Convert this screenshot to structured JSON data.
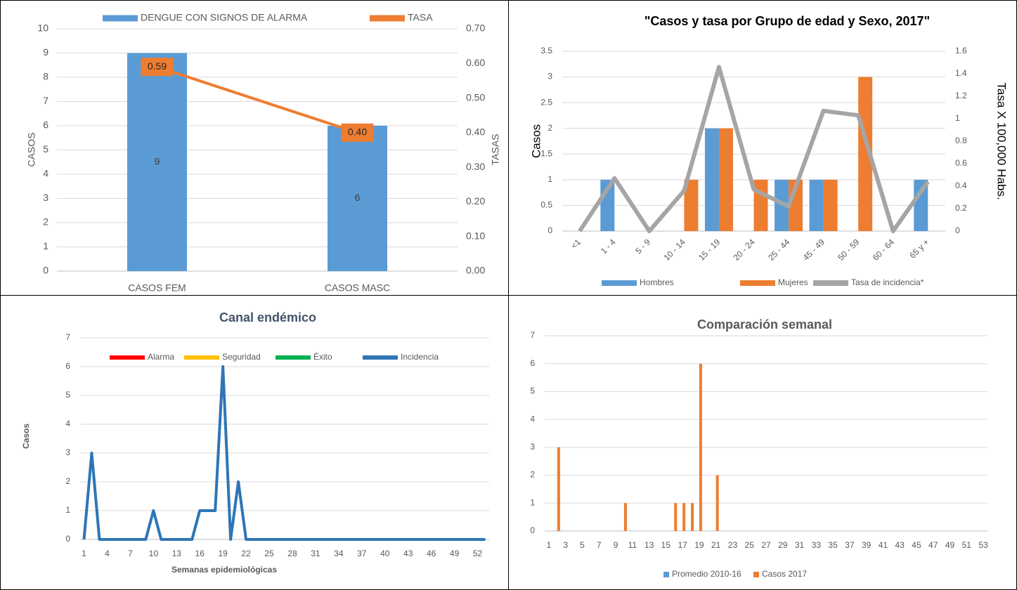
{
  "chart_data": [
    {
      "type": "combo",
      "categories": [
        "CASOS FEM",
        "CASOS MASC"
      ],
      "series": [
        {
          "name": "DENGUE CON SIGNOS DE ALARMA",
          "type": "bar",
          "color": "#5b9bd5",
          "values": [
            9,
            6
          ]
        },
        {
          "name": "TASA",
          "type": "line",
          "axis": "y2",
          "color": "#ed7d31",
          "values": [
            0.59,
            0.4
          ],
          "value_labels": [
            "0.59",
            "0.40"
          ]
        }
      ],
      "y_label": "CASOS",
      "y2_label": "TASAS",
      "ylim": [
        0,
        10
      ],
      "yticks": [
        0,
        1,
        2,
        3,
        4,
        5,
        6,
        7,
        8,
        9,
        10
      ],
      "y2lim": [
        0,
        0.7
      ],
      "y2ticks": [
        {
          "value": 0,
          "label": "0.00"
        },
        {
          "value": 0.1,
          "label": "0.10"
        },
        {
          "value": 0.2,
          "label": "0.20"
        },
        {
          "value": 0.3,
          "label": "0.30"
        },
        {
          "value": 0.4,
          "label": "0.40"
        },
        {
          "value": 0.5,
          "label": "0.50"
        },
        {
          "value": 0.6,
          "label": "0.60"
        },
        {
          "value": 0.7,
          "label": "0.70"
        }
      ],
      "grid": true,
      "data_labels": true
    },
    {
      "type": "combo",
      "title": "\"Casos y tasa por Grupo de edad y Sexo, 2017\"",
      "categories": [
        "<1",
        "1 - 4",
        "5 - 9",
        "10 - 14",
        "15 - 19",
        "20 - 24",
        "25 - 44",
        "45 - 49",
        "50 - 59",
        "60 - 64",
        "65 y +"
      ],
      "series": [
        {
          "name": "Hombres",
          "type": "bar",
          "color": "#5b9bd5",
          "values": [
            0,
            1,
            0,
            0,
            2,
            0,
            1,
            1,
            0,
            0,
            1
          ]
        },
        {
          "name": "Mujeres",
          "type": "bar",
          "color": "#ed7d31",
          "values": [
            0,
            0,
            0,
            1,
            2,
            1,
            1,
            1,
            3,
            0,
            0
          ]
        },
        {
          "name": "Tasa de incidencia*",
          "type": "line",
          "axis": "y2",
          "color": "#a5a5a5",
          "values": [
            0,
            0.47,
            0,
            0.36,
            1.46,
            0.37,
            0.22,
            1.07,
            1.03,
            0,
            0.44
          ]
        }
      ],
      "y_label": "Casos",
      "y2_label": "Tasa X 100,000 Habs.",
      "ylim": [
        0,
        3.5
      ],
      "yticks": [
        0,
        0.5,
        1,
        1.5,
        2,
        2.5,
        3,
        3.5
      ],
      "y2lim": [
        0,
        1.6
      ],
      "y2ticks": [
        0,
        0.2,
        0.4,
        0.6,
        0.8,
        1,
        1.2,
        1.4,
        1.6
      ],
      "grid": true
    },
    {
      "type": "line",
      "title": "Canal endémico",
      "x": [
        1,
        2,
        3,
        4,
        5,
        6,
        7,
        8,
        9,
        10,
        11,
        12,
        13,
        14,
        15,
        16,
        17,
        18,
        19,
        20,
        21,
        22,
        23,
        24,
        25,
        26,
        27,
        28,
        29,
        30,
        31,
        32,
        33,
        34,
        35,
        36,
        37,
        38,
        39,
        40,
        41,
        42,
        43,
        44,
        45,
        46,
        47,
        48,
        49,
        50,
        51,
        52,
        53
      ],
      "series": [
        {
          "name": "Alarma",
          "color": "#ff0000",
          "values": [
            null,
            null,
            null,
            null,
            null,
            null,
            null,
            null,
            null,
            null,
            null,
            null,
            null,
            null,
            null,
            null,
            null,
            null,
            null,
            null,
            null,
            null,
            null,
            null,
            null,
            null,
            null,
            null,
            null,
            null,
            null,
            null,
            null,
            null,
            null,
            null,
            null,
            null,
            null,
            null,
            null,
            null,
            null,
            null,
            null,
            null,
            null,
            null,
            null,
            null,
            null,
            null,
            null
          ]
        },
        {
          "name": "Seguridad",
          "color": "#ffc000",
          "values": [
            null,
            null,
            null,
            null,
            null,
            null,
            null,
            null,
            null,
            null,
            null,
            null,
            null,
            null,
            null,
            null,
            null,
            null,
            null,
            null,
            null,
            null,
            null,
            null,
            null,
            null,
            null,
            null,
            null,
            null,
            null,
            null,
            null,
            null,
            null,
            null,
            null,
            null,
            null,
            null,
            null,
            null,
            null,
            null,
            null,
            null,
            null,
            null,
            null,
            null,
            null,
            null,
            null
          ]
        },
        {
          "name": "Éxito",
          "color": "#00b050",
          "values": [
            null,
            null,
            null,
            null,
            null,
            null,
            null,
            null,
            null,
            null,
            null,
            null,
            null,
            null,
            null,
            null,
            null,
            null,
            null,
            null,
            null,
            null,
            null,
            null,
            null,
            null,
            null,
            null,
            null,
            null,
            null,
            null,
            null,
            null,
            null,
            null,
            null,
            null,
            null,
            null,
            null,
            null,
            null,
            null,
            null,
            null,
            null,
            null,
            null,
            null,
            null,
            null,
            null
          ]
        },
        {
          "name": "Incidencia",
          "color": "#2e75b6",
          "values": [
            0,
            3,
            0,
            0,
            0,
            0,
            0,
            0,
            0,
            1,
            0,
            0,
            0,
            0,
            0,
            1,
            1,
            1,
            6,
            0,
            2,
            0,
            0,
            0,
            0,
            0,
            0,
            0,
            0,
            0,
            0,
            0,
            0,
            0,
            0,
            0,
            0,
            0,
            0,
            0,
            0,
            0,
            0,
            0,
            0,
            0,
            0,
            0,
            0,
            0,
            0,
            0,
            0
          ]
        }
      ],
      "y_label": "Casos",
      "x_label": "Semanas epidemiológicas",
      "xlim": [
        0.5,
        53.5
      ],
      "xticks": [
        1,
        4,
        7,
        10,
        13,
        16,
        19,
        22,
        25,
        28,
        31,
        34,
        37,
        40,
        43,
        46,
        49,
        52
      ],
      "ylim": [
        0,
        7
      ],
      "yticks": [
        0,
        1,
        2,
        3,
        4,
        5,
        6,
        7
      ],
      "grid": true
    },
    {
      "type": "bar",
      "title": "Comparación semanal",
      "x": [
        1,
        2,
        3,
        4,
        5,
        6,
        7,
        8,
        9,
        10,
        11,
        12,
        13,
        14,
        15,
        16,
        17,
        18,
        19,
        20,
        21,
        22,
        23,
        24,
        25,
        26,
        27,
        28,
        29,
        30,
        31,
        32,
        33,
        34,
        35,
        36,
        37,
        38,
        39,
        40,
        41,
        42,
        43,
        44,
        45,
        46,
        47,
        48,
        49,
        50,
        51,
        52,
        53
      ],
      "series": [
        {
          "name": "Promedio 2010-16",
          "color": "#5b9bd5",
          "values": [
            0,
            0,
            0,
            0,
            0,
            0,
            0,
            0,
            0,
            0,
            0,
            0,
            0,
            0,
            0,
            0,
            0,
            0,
            0,
            0,
            0,
            0,
            0,
            0,
            0,
            0,
            0,
            0,
            0,
            0,
            0,
            0,
            0,
            0,
            0,
            0,
            0,
            0,
            0,
            0,
            0,
            0,
            0,
            0,
            0,
            0,
            0,
            0,
            0,
            0,
            0,
            0,
            0
          ]
        },
        {
          "name": "Casos 2017",
          "color": "#ed7d31",
          "values": [
            0,
            3,
            0,
            0,
            0,
            0,
            0,
            0,
            0,
            1,
            0,
            0,
            0,
            0,
            0,
            1,
            1,
            1,
            6,
            0,
            2,
            0,
            0,
            0,
            0,
            0,
            0,
            0,
            0,
            0,
            0,
            0,
            0,
            0,
            0,
            0,
            0,
            0,
            0,
            0,
            0,
            0,
            0,
            0,
            0,
            0,
            0,
            0,
            0,
            0,
            0,
            0,
            0
          ]
        }
      ],
      "xlim": [
        0.5,
        53.5
      ],
      "xticks": [
        1,
        3,
        5,
        7,
        9,
        11,
        13,
        15,
        17,
        19,
        21,
        23,
        25,
        27,
        29,
        31,
        33,
        35,
        37,
        39,
        41,
        43,
        45,
        47,
        49,
        51,
        53
      ],
      "ylim": [
        0,
        7
      ],
      "yticks": [
        0,
        1,
        2,
        3,
        4,
        5,
        6,
        7
      ],
      "grid": true
    }
  ]
}
